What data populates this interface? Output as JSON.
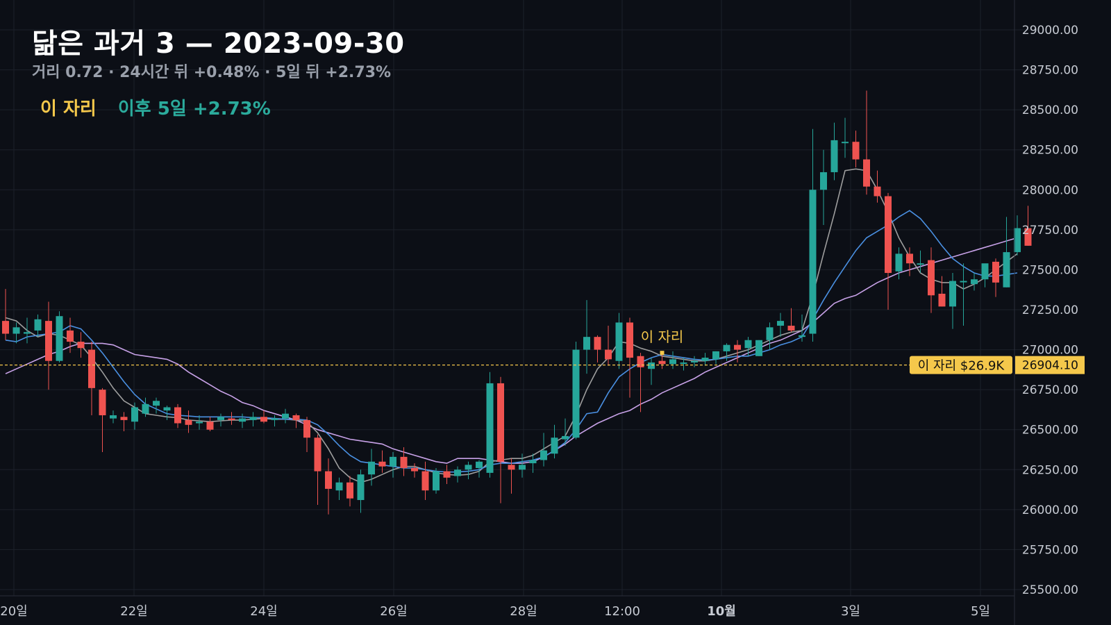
{
  "header": {
    "title": "닮은 과거 3 — 2023-09-30",
    "subtitle": "거리 0.72 · 24시간 뒤 +0.48% · 5일 뒤 +2.73%"
  },
  "legend": {
    "marker_label": "이 자리",
    "after_label": "이후 5일 +2.73%"
  },
  "price_line": {
    "value": 26904.1,
    "value_label": "26904.10",
    "tag_label": "이 자리 $26.9K"
  },
  "annotation": {
    "label": "이 자리"
  },
  "colors": {
    "background": "#0c0f16",
    "up": "#26a69a",
    "down": "#ef5350",
    "marker": "#f5c84b",
    "ma_gray": "#9e9e9e",
    "ma_blue": "#4a90e2",
    "ma_violet": "#c8a2e8"
  },
  "chart_data": {
    "type": "candlestick",
    "ylim": [
      25500,
      29100
    ],
    "y_ticks": [
      "29000.00",
      "28750.00",
      "28500.00",
      "28250.00",
      "28000.00",
      "27750.00",
      "27500.00",
      "27250.00",
      "27000.00",
      "26750.00",
      "26500.00",
      "26250.00",
      "26000.00",
      "25750.00",
      "25500.00"
    ],
    "x_ticks": [
      "20일",
      "22일",
      "24일",
      "26일",
      "28일",
      "12:00",
      "10월",
      "3일",
      "5일"
    ],
    "candles": [
      [
        27180,
        27380,
        27060,
        27100
      ],
      [
        27100,
        27170,
        27040,
        27140
      ],
      [
        27100,
        27200,
        27040,
        27110
      ],
      [
        27120,
        27220,
        27080,
        27190
      ],
      [
        27180,
        27300,
        26750,
        26930
      ],
      [
        26930,
        27240,
        26920,
        27210
      ],
      [
        27120,
        27200,
        26980,
        27050
      ],
      [
        27050,
        27110,
        26950,
        27010
      ],
      [
        27000,
        27050,
        26590,
        26760
      ],
      [
        26750,
        26760,
        26360,
        26590
      ],
      [
        26570,
        26620,
        26540,
        26590
      ],
      [
        26580,
        26610,
        26490,
        26560
      ],
      [
        26550,
        26670,
        26500,
        26640
      ],
      [
        26600,
        26700,
        26580,
        26660
      ],
      [
        26650,
        26700,
        26600,
        26680
      ],
      [
        26620,
        26650,
        26560,
        26640
      ],
      [
        26640,
        26660,
        26510,
        26540
      ],
      [
        26560,
        26620,
        26480,
        26530
      ],
      [
        26540,
        26590,
        26500,
        26550
      ],
      [
        26550,
        26580,
        26490,
        26500
      ],
      [
        26560,
        26600,
        26520,
        26580
      ],
      [
        26570,
        26610,
        26530,
        26560
      ],
      [
        26550,
        26600,
        26510,
        26570
      ],
      [
        26560,
        26610,
        26520,
        26580
      ],
      [
        26580,
        26620,
        26540,
        26550
      ],
      [
        26560,
        26590,
        26520,
        26570
      ],
      [
        26570,
        26630,
        26540,
        26600
      ],
      [
        26590,
        26600,
        26510,
        26560
      ],
      [
        26560,
        26580,
        26360,
        26450
      ],
      [
        26450,
        26470,
        26030,
        26240
      ],
      [
        26240,
        26320,
        25970,
        26130
      ],
      [
        26120,
        26200,
        26060,
        26170
      ],
      [
        26170,
        26210,
        26020,
        26070
      ],
      [
        26060,
        26250,
        25980,
        26220
      ],
      [
        26220,
        26380,
        26150,
        26300
      ],
      [
        26300,
        26370,
        26230,
        26270
      ],
      [
        26270,
        26360,
        26200,
        26330
      ],
      [
        26330,
        26390,
        26210,
        26260
      ],
      [
        26260,
        26290,
        26200,
        26240
      ],
      [
        26240,
        26300,
        26060,
        26120
      ],
      [
        26120,
        26260,
        26100,
        26240
      ],
      [
        26240,
        26280,
        26160,
        26200
      ],
      [
        26210,
        26270,
        26170,
        26250
      ],
      [
        26250,
        26300,
        26190,
        26280
      ],
      [
        26260,
        26310,
        26200,
        26300
      ],
      [
        26230,
        26860,
        26200,
        26790
      ],
      [
        26790,
        26830,
        26040,
        26300
      ],
      [
        26280,
        26320,
        26100,
        26250
      ],
      [
        26250,
        26350,
        26200,
        26280
      ],
      [
        26290,
        26350,
        26230,
        26310
      ],
      [
        26310,
        26480,
        26270,
        26370
      ],
      [
        26350,
        26530,
        26320,
        26450
      ],
      [
        26440,
        26570,
        26400,
        26460
      ],
      [
        26450,
        27050,
        26440,
        27000
      ],
      [
        27000,
        27310,
        26850,
        27080
      ],
      [
        27080,
        27090,
        26920,
        27000
      ],
      [
        27000,
        27150,
        26900,
        26940
      ],
      [
        26930,
        27230,
        26880,
        27170
      ],
      [
        27170,
        27200,
        26700,
        26950
      ],
      [
        26960,
        26980,
        26610,
        26890
      ],
      [
        26880,
        26950,
        26780,
        26920
      ],
      [
        26930,
        26970,
        26880,
        26910
      ],
      [
        26910,
        26990,
        26880,
        26940
      ],
      [
        26920,
        26950,
        26870,
        26920
      ],
      [
        26920,
        26960,
        26890,
        26930
      ],
      [
        26930,
        26980,
        26900,
        26950
      ],
      [
        26940,
        26990,
        26910,
        26990
      ],
      [
        26990,
        27040,
        26930,
        27030
      ],
      [
        27030,
        27060,
        26920,
        27000
      ],
      [
        27010,
        27080,
        26960,
        27060
      ],
      [
        26960,
        27060,
        26960,
        27060
      ],
      [
        27060,
        27170,
        27000,
        27140
      ],
      [
        27150,
        27230,
        27080,
        27180
      ],
      [
        27150,
        27260,
        27110,
        27120
      ],
      [
        27080,
        27220,
        27050,
        27090
      ],
      [
        27100,
        28380,
        27050,
        28000
      ],
      [
        28000,
        28250,
        27780,
        28110
      ],
      [
        28110,
        28420,
        28060,
        28310
      ],
      [
        28300,
        28450,
        28200,
        28300
      ],
      [
        28300,
        28370,
        28140,
        28190
      ],
      [
        28190,
        28620,
        27970,
        28020
      ],
      [
        28020,
        28120,
        27920,
        27960
      ],
      [
        27960,
        27980,
        27250,
        27480
      ],
      [
        27490,
        27640,
        27440,
        27600
      ],
      [
        27600,
        27640,
        27460,
        27540
      ],
      [
        27540,
        27620,
        27480,
        27540
      ],
      [
        27560,
        27640,
        27230,
        27340
      ],
      [
        27350,
        27460,
        27270,
        27270
      ],
      [
        27270,
        27480,
        27130,
        27430
      ],
      [
        27430,
        27540,
        27150,
        27430
      ],
      [
        27410,
        27480,
        27370,
        27440
      ],
      [
        27440,
        27530,
        27390,
        27540
      ],
      [
        27550,
        27570,
        27330,
        27420
      ],
      [
        27390,
        27830,
        27390,
        27610
      ],
      [
        27610,
        27840,
        27590,
        27760
      ],
      [
        27760,
        27900,
        27650,
        27650
      ]
    ],
    "ma_gray": [
      27200,
      27180,
      27120,
      27080,
      27100,
      27090,
      27060,
      27030,
      26950,
      26860,
      26760,
      26680,
      26640,
      26600,
      26590,
      26580,
      26575,
      26560,
      26555,
      26550,
      26555,
      26560,
      26560,
      26565,
      26570,
      26565,
      26565,
      26560,
      26550,
      26480,
      26380,
      26260,
      26200,
      26170,
      26190,
      26220,
      26250,
      26270,
      26270,
      26250,
      26230,
      26220,
      26215,
      26220,
      26240,
      26300,
      26310,
      26320,
      26320,
      26340,
      26380,
      26420,
      26460,
      26590,
      26750,
      26880,
      26950,
      27050,
      27040,
      27010,
      26990,
      26960,
      26950,
      26940,
      26930,
      26930,
      26940,
      26960,
      26980,
      27000,
      27030,
      27060,
      27090,
      27110,
      27120,
      27340,
      27600,
      27850,
      28120,
      28130,
      28120,
      28000,
      27860,
      27700,
      27580,
      27480,
      27440,
      27420,
      27420,
      27380,
      27410,
      27450,
      27500,
      27550,
      27600
    ],
    "ma_blue": [
      27060,
      27050,
      27080,
      27090,
      27100,
      27110,
      27150,
      27130,
      27060,
      26980,
      26890,
      26800,
      26720,
      26660,
      26630,
      26600,
      26590,
      26585,
      26580,
      26580,
      26580,
      26580,
      26580,
      26575,
      26575,
      26570,
      26565,
      26565,
      26560,
      26530,
      26470,
      26400,
      26340,
      26300,
      26290,
      26280,
      26270,
      26260,
      26260,
      26250,
      26240,
      26235,
      26235,
      26240,
      26250,
      26280,
      26290,
      26290,
      26300,
      26310,
      26330,
      26370,
      26420,
      26500,
      26600,
      26610,
      26730,
      26830,
      26880,
      26920,
      26950,
      26970,
      26960,
      26950,
      26940,
      26935,
      26940,
      26950,
      26960,
      26960,
      26980,
      27000,
      27030,
      27050,
      27080,
      27190,
      27310,
      27420,
      27520,
      27620,
      27700,
      27740,
      27780,
      27830,
      27870,
      27820,
      27740,
      27650,
      27570,
      27520,
      27480,
      27460,
      27460,
      27470,
      27480
    ],
    "ma_violet": [
      26850,
      26880,
      26910,
      26940,
      26970,
      26990,
      27020,
      27040,
      27040,
      27040,
      27030,
      27000,
      26970,
      26960,
      26950,
      26940,
      26910,
      26860,
      26820,
      26780,
      26740,
      26710,
      26670,
      26650,
      26620,
      26600,
      26580,
      26560,
      26530,
      26500,
      26480,
      26460,
      26440,
      26430,
      26420,
      26410,
      26380,
      26360,
      26340,
      26320,
      26300,
      26290,
      26320,
      26320,
      26320,
      26310,
      26300,
      26290,
      26290,
      26300,
      26330,
      26370,
      26410,
      26460,
      26500,
      26540,
      26570,
      26600,
      26620,
      26660,
      26690,
      26730,
      26760,
      26790,
      26820,
      26860,
      26890,
      26920,
      26950,
      26980,
      27010,
      27040,
      27060,
      27090,
      27120,
      27170,
      27230,
      27290,
      27320,
      27340,
      27380,
      27420,
      27450,
      27480,
      27500,
      27520,
      27540,
      27560,
      27580,
      27600,
      27620,
      27640,
      27660,
      27680,
      27700
    ]
  }
}
